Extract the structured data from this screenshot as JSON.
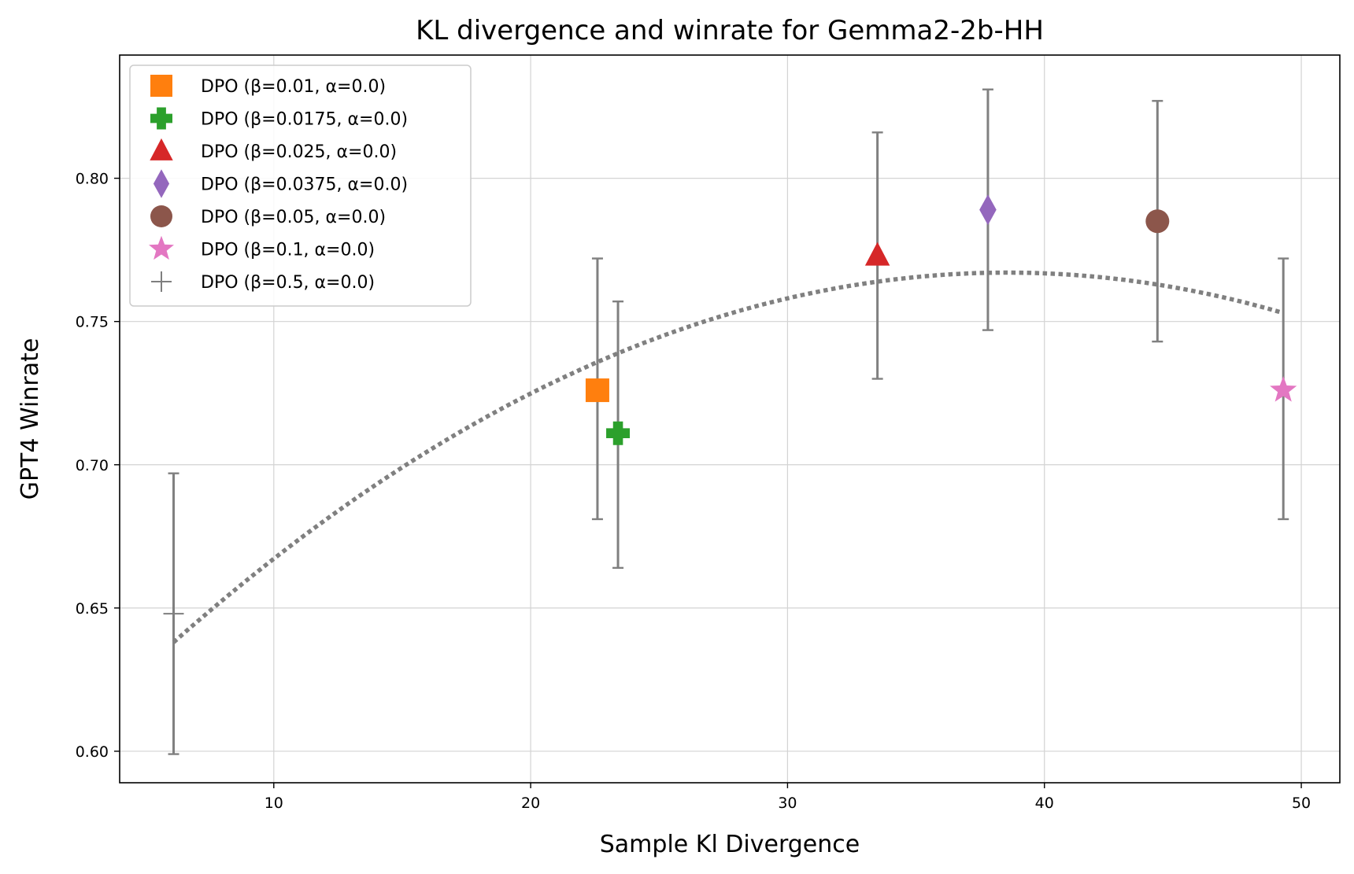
{
  "chart_data": {
    "type": "scatter",
    "title": "KL divergence and winrate for Gemma2-2b-HH",
    "xlabel": "Sample Kl Divergence",
    "ylabel": "GPT4 Winrate",
    "xlim": [
      4,
      51.5
    ],
    "ylim": [
      0.589,
      0.843
    ],
    "xticks": [
      10,
      20,
      30,
      40,
      50
    ],
    "yticks": [
      0.6,
      0.65,
      0.7,
      0.75,
      0.8
    ],
    "ytick_labels": [
      "0.60",
      "0.65",
      "0.70",
      "0.75",
      "0.80"
    ],
    "grid": true,
    "legend_position": "top-left",
    "errorbar_color": "#808080",
    "series": [
      {
        "name": "DPO (β=0.01, α=0.0)",
        "marker": "square",
        "color": "#ff7f0e",
        "x": 22.6,
        "y": 0.726,
        "yerr_low": 0.681,
        "yerr_high": 0.772
      },
      {
        "name": "DPO (β=0.0175, α=0.0)",
        "marker": "plus",
        "color": "#2ca02c",
        "x": 23.4,
        "y": 0.711,
        "yerr_low": 0.664,
        "yerr_high": 0.757
      },
      {
        "name": "DPO (β=0.025, α=0.0)",
        "marker": "triangle",
        "color": "#d62728",
        "x": 33.5,
        "y": 0.773,
        "yerr_low": 0.73,
        "yerr_high": 0.816
      },
      {
        "name": "DPO (β=0.0375, α=0.0)",
        "marker": "diamond",
        "color": "#9467bd",
        "x": 37.8,
        "y": 0.789,
        "yerr_low": 0.747,
        "yerr_high": 0.831
      },
      {
        "name": "DPO (β=0.05, α=0.0)",
        "marker": "circle",
        "color": "#8c564b",
        "x": 44.4,
        "y": 0.785,
        "yerr_low": 0.743,
        "yerr_high": 0.827
      },
      {
        "name": "DPO (β=0.1, α=0.0)",
        "marker": "star",
        "color": "#e377c2",
        "x": 49.3,
        "y": 0.726,
        "yerr_low": 0.681,
        "yerr_high": 0.772
      },
      {
        "name": "DPO (β=0.5, α=0.0)",
        "marker": "thin-plus",
        "color": "#7f7f7f",
        "x": 6.1,
        "y": 0.648,
        "yerr_low": 0.599,
        "yerr_high": 0.697
      }
    ],
    "trend_curve": {
      "style": "dotted",
      "color": "#808080",
      "fit": "quadratic",
      "points": [
        [
          6.1,
          0.638
        ],
        [
          20,
          0.725
        ],
        [
          30,
          0.758
        ],
        [
          39,
          0.767
        ],
        [
          49.3,
          0.753
        ]
      ]
    }
  }
}
